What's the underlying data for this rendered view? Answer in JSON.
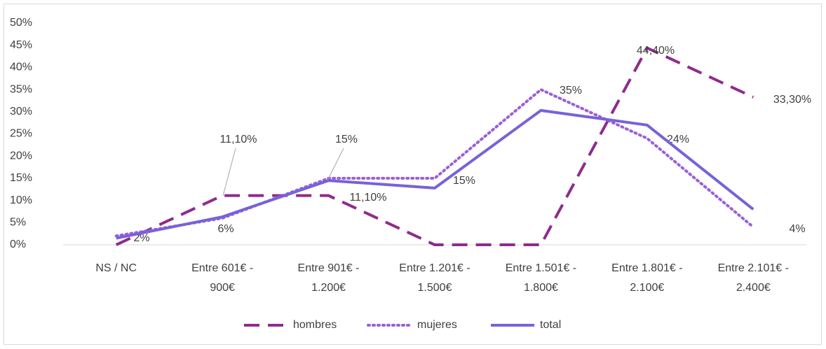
{
  "chart_data": {
    "type": "line",
    "categories": [
      "NS / NC",
      "Entre 601€ - 900€",
      "Entre 901€ - 1.200€",
      "Entre 1.201€ - 1.500€",
      "Entre 1.501€ - 1.800€",
      "Entre 1.801€ - 2.100€",
      "Entre 2.101€ - 2.400€"
    ],
    "series": [
      {
        "name": "hombres",
        "color": "#8f2b8d",
        "style": "dashed",
        "values": [
          0,
          11.1,
          11.1,
          0,
          0,
          44.4,
          33.3
        ],
        "value_labels": [
          null,
          "11,10%",
          "11,10%",
          null,
          null,
          "44,40%",
          "33,30%"
        ]
      },
      {
        "name": "mujeres",
        "color": "#9c5fd6",
        "style": "dotted",
        "values": [
          2,
          6,
          15,
          15,
          35,
          24,
          4
        ],
        "value_labels": [
          "2%",
          "6%",
          "15%",
          "15%",
          "35%",
          "24%",
          "4%"
        ]
      },
      {
        "name": "total",
        "color": "#7762d9",
        "style": "solid",
        "values": [
          1.5,
          6.3,
          14.5,
          12.8,
          30.3,
          27,
          8
        ]
      }
    ],
    "ylim": [
      0,
      50
    ],
    "yticks": [
      {
        "value": 0,
        "label": "0%"
      },
      {
        "value": 5,
        "label": "5%"
      },
      {
        "value": 10,
        "label": "10%"
      },
      {
        "value": 15,
        "label": "15%"
      },
      {
        "value": 20,
        "label": "20%"
      },
      {
        "value": 25,
        "label": "25%"
      },
      {
        "value": 30,
        "label": "30%"
      },
      {
        "value": 35,
        "label": "35%"
      },
      {
        "value": 40,
        "label": "40%"
      },
      {
        "value": 45,
        "label": "45%"
      },
      {
        "value": 50,
        "label": "50%"
      }
    ],
    "legend": "bottom"
  }
}
